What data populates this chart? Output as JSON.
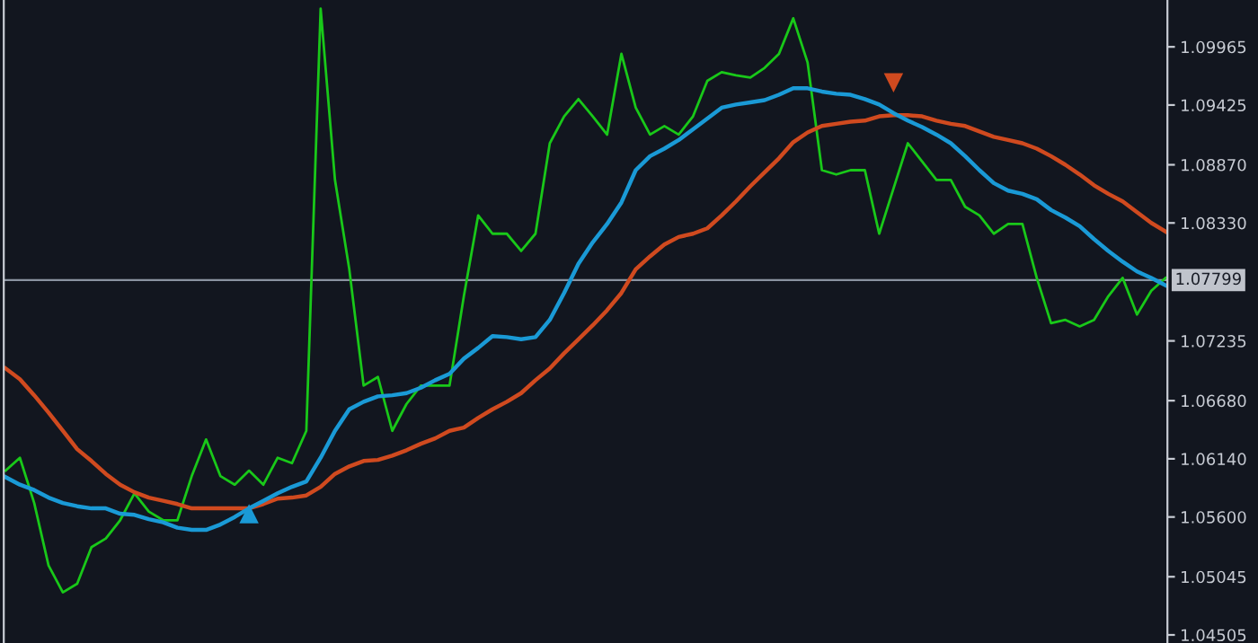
{
  "chart_data": {
    "type": "line",
    "categories": [
      null,
      null,
      null,
      null,
      null,
      null,
      null,
      null,
      null,
      null,
      null,
      null,
      null,
      null,
      null,
      null,
      null,
      null,
      null,
      null,
      null,
      null,
      null,
      null,
      null,
      null,
      null,
      null,
      null,
      null,
      null,
      null,
      null,
      null,
      null,
      null,
      null,
      null,
      null,
      null,
      null,
      null,
      null,
      null,
      null,
      null,
      null,
      null,
      null,
      null,
      null,
      null,
      null,
      null,
      null,
      null,
      null,
      null,
      null,
      null,
      null,
      null,
      null,
      null,
      null,
      null,
      null,
      null,
      null,
      null,
      null,
      null,
      null,
      null,
      null,
      null,
      null,
      null,
      null,
      null,
      null,
      null
    ],
    "series": [
      {
        "color": "#19c819",
        "values": [
          1.0603,
          1.0615,
          1.0573,
          1.0515,
          1.049,
          1.0498,
          1.0532,
          1.054,
          1.0557,
          1.0582,
          1.0565,
          1.0557,
          1.0557,
          1.0598,
          1.0632,
          1.0598,
          1.059,
          1.0603,
          1.059,
          1.0615,
          1.061,
          1.064,
          1.1032,
          1.0873,
          1.079,
          1.0682,
          1.069,
          1.064,
          1.0665,
          1.0682,
          1.0682,
          1.0682,
          1.0765,
          1.084,
          1.0823,
          1.0823,
          1.0807,
          1.0823,
          1.0907,
          1.0932,
          1.0948,
          1.0932,
          1.0915,
          1.099,
          1.094,
          1.0915,
          1.0923,
          1.0915,
          1.0932,
          1.0965,
          1.0973,
          1.097,
          1.0968,
          1.0977,
          1.099,
          1.1023,
          1.0982,
          1.0882,
          1.0878,
          1.0882,
          1.0882,
          1.0823,
          1.0865,
          1.0907,
          1.089,
          1.0873,
          1.0873,
          1.0848,
          1.084,
          1.0823,
          1.0832,
          1.0832,
          1.0782,
          1.074,
          1.0743,
          1.0737,
          1.0743,
          1.0765,
          1.0782,
          1.0748,
          1.077,
          1.0782
        ]
      },
      {
        "color": "#d04a1f",
        "values": [
          1.0698,
          1.0688,
          1.0673,
          1.0657,
          1.064,
          1.0623,
          1.0612,
          1.06,
          1.059,
          1.0583,
          1.0578,
          1.0575,
          1.0572,
          1.0568,
          1.0568,
          1.0568,
          1.0568,
          1.0568,
          1.0572,
          1.0577,
          1.0578,
          1.058,
          1.0588,
          1.06,
          1.0607,
          1.0612,
          1.0613,
          1.0617,
          1.0622,
          1.0628,
          1.0633,
          1.064,
          1.0643,
          1.0652,
          1.066,
          1.0667,
          1.0675,
          1.0687,
          1.0698,
          1.0712,
          1.0725,
          1.0738,
          1.0752,
          1.0768,
          1.079,
          1.0802,
          1.0813,
          1.082,
          1.0823,
          1.0828,
          1.084,
          1.0853,
          1.0867,
          1.088,
          1.0893,
          1.0908,
          1.0917,
          1.0923,
          1.0925,
          1.0927,
          1.0928,
          1.0932,
          1.0933,
          1.0933,
          1.0932,
          1.0928,
          1.0925,
          1.0923,
          1.0918,
          1.0913,
          1.091,
          1.0907,
          1.0902,
          1.0895,
          1.0887,
          1.0878,
          1.0868,
          1.086,
          1.0853,
          1.0843,
          1.0833,
          1.0825
        ]
      },
      {
        "color": "#1a9ad6",
        "values": [
          1.0597,
          1.059,
          1.0585,
          1.0578,
          1.0573,
          1.057,
          1.0568,
          1.0568,
          1.0563,
          1.0562,
          1.0558,
          1.0555,
          1.055,
          1.0548,
          1.0548,
          1.0553,
          1.056,
          1.0568,
          1.0575,
          1.0582,
          1.0588,
          1.0593,
          1.0615,
          1.064,
          1.066,
          1.0667,
          1.0672,
          1.0673,
          1.0675,
          1.068,
          1.0687,
          1.0693,
          1.0707,
          1.0717,
          1.0728,
          1.0727,
          1.0725,
          1.0727,
          1.0743,
          1.0768,
          1.0795,
          1.0815,
          1.0832,
          1.0852,
          1.0882,
          1.0895,
          1.0902,
          1.091,
          1.092,
          1.093,
          1.094,
          1.0943,
          1.0945,
          1.0947,
          1.0952,
          1.0958,
          1.0958,
          1.0955,
          1.0953,
          1.0952,
          1.0948,
          1.0943,
          1.0935,
          1.0928,
          1.0922,
          1.0915,
          1.0907,
          1.0895,
          1.0882,
          1.087,
          1.0863,
          1.086,
          1.0855,
          1.0845,
          1.0838,
          1.083,
          1.0818,
          1.0807,
          1.0797,
          1.0788,
          1.0782,
          1.0775
        ]
      },
      {
        "type": "scatter",
        "color": "#1a9ad6",
        "marker": "triangle",
        "values": [
          null,
          null,
          null,
          null,
          null,
          null,
          null,
          null,
          null,
          null,
          null,
          null,
          null,
          null,
          null,
          null,
          null,
          1.0563,
          null,
          null,
          null,
          null,
          null,
          null,
          null,
          null,
          null,
          null,
          null,
          null,
          null,
          null,
          null,
          null,
          null,
          null,
          null,
          null,
          null,
          null,
          null,
          null,
          null,
          null,
          null,
          null,
          null,
          null,
          null,
          null,
          null,
          null,
          null,
          null,
          null,
          null,
          null,
          null,
          null,
          null,
          null,
          null,
          null,
          null,
          null,
          null,
          null,
          null,
          null,
          null,
          null,
          null,
          null,
          null,
          null,
          null,
          null,
          null,
          null,
          null,
          null,
          null
        ]
      },
      {
        "type": "scatter",
        "color": "#d04a1f",
        "marker": "triangle",
        "values": [
          null,
          null,
          null,
          null,
          null,
          null,
          null,
          null,
          null,
          null,
          null,
          null,
          null,
          null,
          null,
          null,
          null,
          null,
          null,
          null,
          null,
          null,
          null,
          null,
          null,
          null,
          null,
          null,
          null,
          null,
          null,
          null,
          null,
          null,
          null,
          null,
          null,
          null,
          null,
          null,
          null,
          null,
          null,
          null,
          null,
          null,
          null,
          null,
          null,
          null,
          null,
          null,
          null,
          null,
          null,
          null,
          null,
          null,
          null,
          null,
          null,
          null,
          1.0963,
          null,
          null,
          null,
          null,
          null,
          null,
          null,
          null,
          null,
          null,
          null,
          null,
          null,
          null,
          null,
          null,
          null,
          null,
          null
        ]
      }
    ],
    "ylim": [
      1.0443,
      1.104
    ],
    "yticks": [
      1.09965,
      1.09425,
      {
        "value": 1.0887,
        "label": "1.08870"
      },
      {
        "value": 1.0833,
        "label": "1.08330"
      },
      1.07235,
      {
        "value": 1.0668,
        "label": "1.06680"
      },
      {
        "value": 1.0614,
        "label": "1.06140"
      },
      {
        "value": 1.056,
        "label": "1.05600"
      },
      1.05045,
      1.04505
    ],
    "ref_lines": [
      {
        "axis": "y",
        "value": 1.07799,
        "label": "1.07799",
        "color": "#8a93a0"
      }
    ],
    "grid": false,
    "legend": false
  }
}
